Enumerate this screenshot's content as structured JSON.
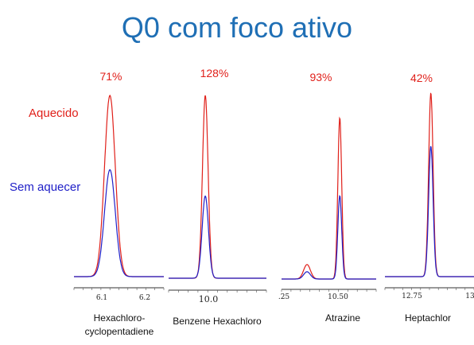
{
  "title": "Q0 com foco ativo",
  "legend": {
    "heated": "Aquecido",
    "unheated": "Sem aquecer"
  },
  "colors": {
    "heated": "#e0201a",
    "unheated": "#2020c8",
    "title": "#1f6fb5"
  },
  "chart_data": [
    {
      "type": "line",
      "compound": [
        "Hexachloro-",
        "cyclopentadiene"
      ],
      "percent": "71%",
      "ticks": [
        "6.1",
        "6.2"
      ],
      "xlim": [
        6.05,
        6.25
      ],
      "peaks": [
        {
          "series": "heated",
          "x": 6.13,
          "height": 1.0,
          "width": 0.012
        },
        {
          "series": "unheated",
          "x": 6.13,
          "height": 0.59,
          "width": 0.012
        }
      ]
    },
    {
      "type": "line",
      "compound": [
        "Benzene Hexachloro"
      ],
      "percent": "128%",
      "ticks": [
        "10.0"
      ],
      "xlim": [
        9.92,
        10.2
      ],
      "peaks": [
        {
          "series": "heated",
          "x": 10.025,
          "height": 1.0,
          "width": 0.008
        },
        {
          "series": "unheated",
          "x": 10.025,
          "height": 0.45,
          "width": 0.009
        }
      ]
    },
    {
      "type": "line",
      "compound": [
        "Atrazine"
      ],
      "percent": "93%",
      "ticks": [
        ".25",
        "10.50"
      ],
      "xlim": [
        10.25,
        10.64
      ],
      "peaks": [
        {
          "series": "heated",
          "x": 10.355,
          "height": 0.08,
          "width": 0.014
        },
        {
          "series": "unheated",
          "x": 10.355,
          "height": 0.04,
          "width": 0.014
        },
        {
          "series": "heated",
          "x": 10.49,
          "height": 0.89,
          "width": 0.008
        },
        {
          "series": "unheated",
          "x": 10.49,
          "height": 0.46,
          "width": 0.008
        }
      ]
    },
    {
      "type": "line",
      "compound": [
        "Heptachlor"
      ],
      "percent": "42%",
      "ticks": [
        "12.75",
        "13"
      ],
      "xlim": [
        12.68,
        13.0
      ],
      "peaks": [
        {
          "series": "heated",
          "x": 12.845,
          "height": 1.0,
          "width": 0.008
        },
        {
          "series": "unheated",
          "x": 12.845,
          "height": 0.71,
          "width": 0.008
        }
      ]
    }
  ]
}
